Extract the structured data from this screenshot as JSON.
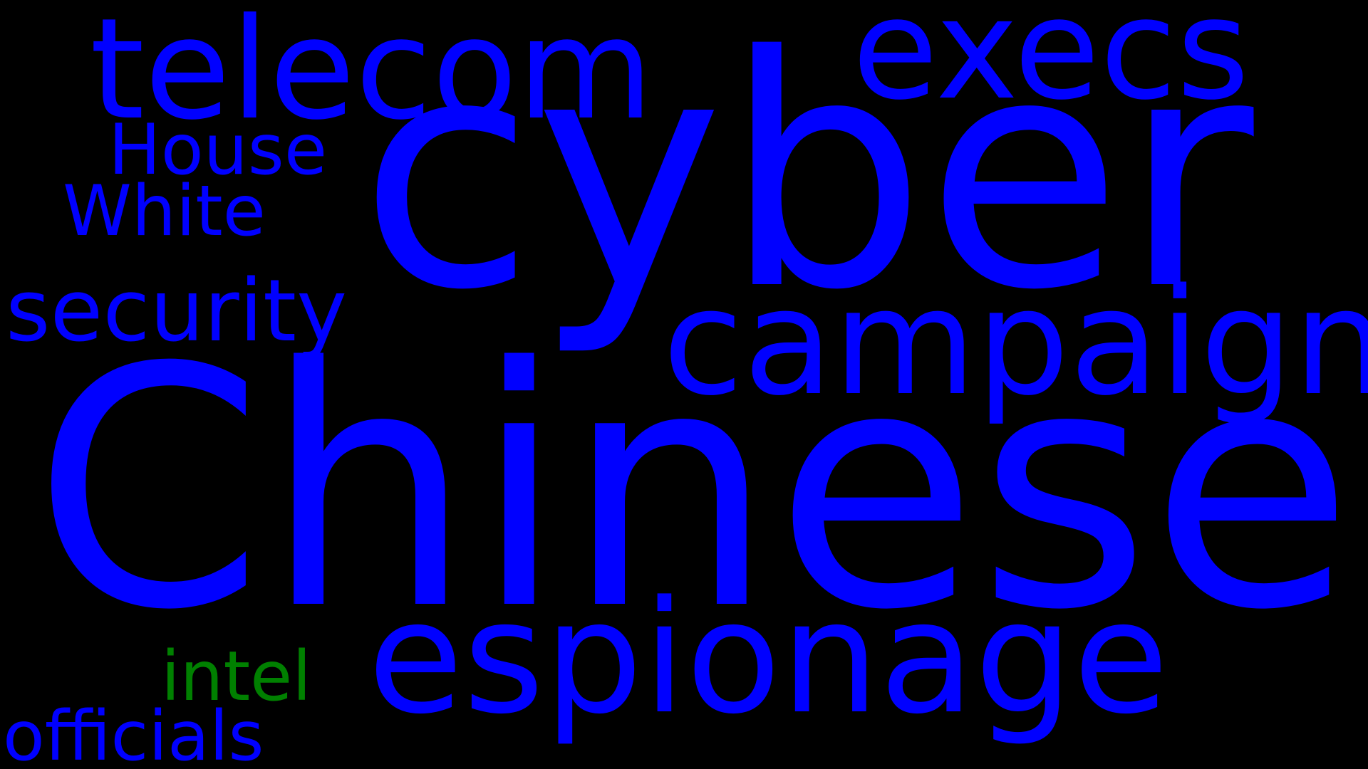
{
  "background_color": "#000000",
  "words": {
    "chinese": {
      "text": "Chinese",
      "color": "#0000ff"
    },
    "cyber": {
      "text": "cyber",
      "color": "#0000ff"
    },
    "espionage": {
      "text": "espionage",
      "color": "#0000ff"
    },
    "campaign": {
      "text": "campaign",
      "color": "#0000ff"
    },
    "telecom": {
      "text": "telecom",
      "color": "#0000ff"
    },
    "execs": {
      "text": "execs",
      "color": "#0000ff"
    },
    "security": {
      "text": "security",
      "color": "#0000ff"
    },
    "house": {
      "text": "House",
      "color": "#0000ff"
    },
    "white": {
      "text": "White",
      "color": "#0000ff"
    },
    "intel": {
      "text": "intel",
      "color": "#008000"
    },
    "officials": {
      "text": "officials",
      "color": "#0000ff"
    }
  }
}
